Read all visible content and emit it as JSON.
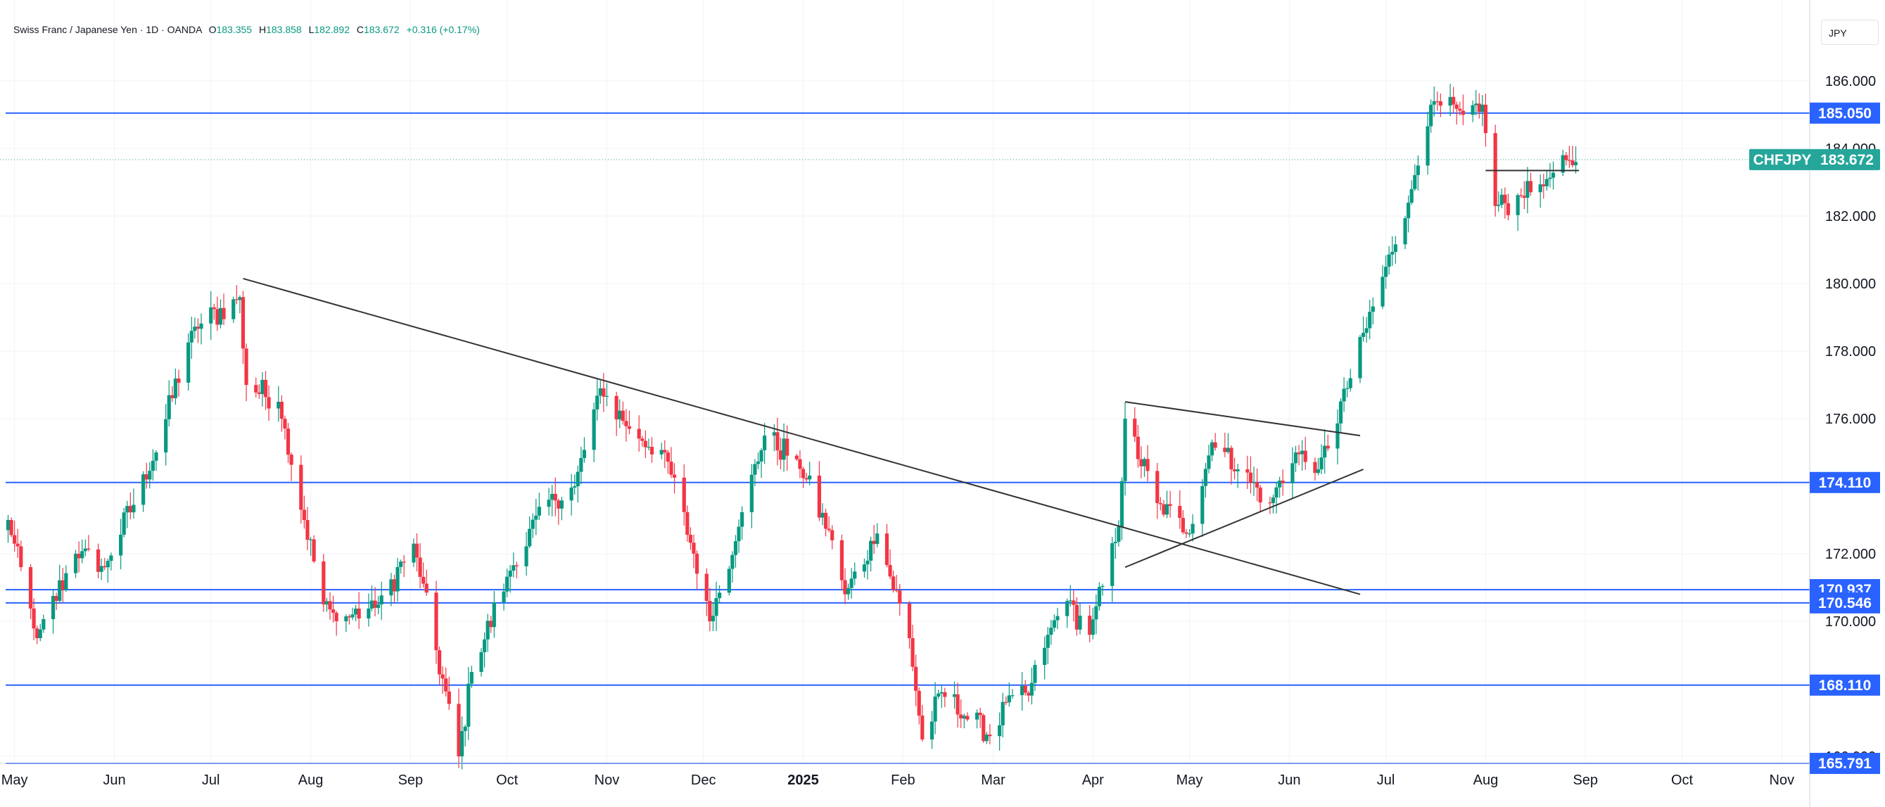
{
  "header": {
    "symbol_title": "Swiss Franc / Japanese Yen · 1D · OANDA",
    "open_label": "O",
    "open_value": "183.355",
    "high_label": "H",
    "high_value": "183.858",
    "low_label": "L",
    "low_value": "182.892",
    "close_label": "C",
    "close_value": "183.672",
    "change": "+0.316 (+0.17%)"
  },
  "currency_button": "JPY",
  "colors": {
    "up": "#089981",
    "down": "#f23645",
    "hline": "#2962ff",
    "trendline": "#333333",
    "price_tag": "#26a69a",
    "grid": "#f0f3fa"
  },
  "chart_data": {
    "type": "candlestick",
    "symbol": "CHFJPY",
    "last_price": "183.672",
    "ylim": [
      164.5,
      188.4
    ],
    "y_ticks": [
      "186.000",
      "184.000",
      "182.000",
      "180.000",
      "178.000",
      "176.000",
      "172.000",
      "170.000",
      "166.000"
    ],
    "x_ticks": [
      {
        "label": "May",
        "date": "2024-05-01"
      },
      {
        "label": "Jun",
        "date": "2024-06-01"
      },
      {
        "label": "Jul",
        "date": "2024-07-01"
      },
      {
        "label": "Aug",
        "date": "2024-08-01"
      },
      {
        "label": "Sep",
        "date": "2024-09-01"
      },
      {
        "label": "Oct",
        "date": "2024-10-01"
      },
      {
        "label": "Nov",
        "date": "2024-11-01"
      },
      {
        "label": "Dec",
        "date": "2024-12-01"
      },
      {
        "label": "2025",
        "date": "2025-01-01"
      },
      {
        "label": "Feb",
        "date": "2025-02-01"
      },
      {
        "label": "Mar",
        "date": "2025-03-01"
      },
      {
        "label": "Apr",
        "date": "2025-04-01"
      },
      {
        "label": "May",
        "date": "2025-05-01"
      },
      {
        "label": "Jun",
        "date": "2025-06-01"
      },
      {
        "label": "Jul",
        "date": "2025-07-01"
      },
      {
        "label": "Aug",
        "date": "2025-08-01"
      },
      {
        "label": "Sep",
        "date": "2025-09-01"
      },
      {
        "label": "Oct",
        "date": "2025-10-01"
      },
      {
        "label": "Nov",
        "date": "2025-11-01"
      }
    ],
    "horizontal_levels": [
      {
        "label": "185.050",
        "price": 185.05
      },
      {
        "label": "174.110",
        "price": 174.11
      },
      {
        "label": "170.937",
        "price": 170.937
      },
      {
        "label": "170.546",
        "price": 170.546
      },
      {
        "label": "168.110",
        "price": 168.11
      },
      {
        "label": "165.791",
        "price": 165.791
      }
    ],
    "trendlines": [
      {
        "name": "descending-resistance",
        "from": {
          "date": "2024-07-11",
          "price": 180.15
        },
        "to": {
          "date": "2025-06-23",
          "price": 170.8
        }
      },
      {
        "name": "wedge-upper",
        "from": {
          "date": "2025-04-11",
          "price": 176.5
        },
        "to": {
          "date": "2025-06-23",
          "price": 175.5
        }
      },
      {
        "name": "wedge-lower",
        "from": {
          "date": "2025-04-11",
          "price": 171.6
        },
        "to": {
          "date": "2025-06-24",
          "price": 174.5
        }
      },
      {
        "name": "aug-range-line",
        "from": {
          "date": "2025-08-01",
          "price": 183.35
        },
        "to": {
          "date": "2025-08-30",
          "price": 183.35
        }
      }
    ],
    "anchors": [
      {
        "date": "2024-04-29",
        "price": 173.0
      },
      {
        "date": "2024-05-08",
        "price": 169.5
      },
      {
        "date": "2024-05-20",
        "price": 172.0
      },
      {
        "date": "2024-05-29",
        "price": 171.6
      },
      {
        "date": "2024-06-14",
        "price": 175.0
      },
      {
        "date": "2024-06-25",
        "price": 178.6
      },
      {
        "date": "2024-07-10",
        "price": 179.6
      },
      {
        "date": "2024-07-12",
        "price": 177.0
      },
      {
        "date": "2024-07-22",
        "price": 176.5
      },
      {
        "date": "2024-08-05",
        "price": 170.5
      },
      {
        "date": "2024-08-09",
        "price": 170.0
      },
      {
        "date": "2024-08-22",
        "price": 170.5
      },
      {
        "date": "2024-09-02",
        "price": 172.3
      },
      {
        "date": "2024-09-16",
        "price": 166.0
      },
      {
        "date": "2024-09-20",
        "price": 168.5
      },
      {
        "date": "2024-10-02",
        "price": 171.5
      },
      {
        "date": "2024-10-14",
        "price": 173.6
      },
      {
        "date": "2024-10-22",
        "price": 174.0
      },
      {
        "date": "2024-10-30",
        "price": 176.9
      },
      {
        "date": "2024-11-08",
        "price": 175.7
      },
      {
        "date": "2024-11-19",
        "price": 175.0
      },
      {
        "date": "2024-11-28",
        "price": 172.0
      },
      {
        "date": "2024-12-03",
        "price": 170.0
      },
      {
        "date": "2024-12-12",
        "price": 172.8
      },
      {
        "date": "2024-12-20",
        "price": 175.5
      },
      {
        "date": "2024-12-30",
        "price": 174.8
      },
      {
        "date": "2025-01-10",
        "price": 172.4
      },
      {
        "date": "2025-01-14",
        "price": 170.8
      },
      {
        "date": "2025-01-24",
        "price": 172.6
      },
      {
        "date": "2025-02-03",
        "price": 169.5
      },
      {
        "date": "2025-02-07",
        "price": 166.5
      },
      {
        "date": "2025-02-13",
        "price": 167.9
      },
      {
        "date": "2025-02-20",
        "price": 167.2
      },
      {
        "date": "2025-02-28",
        "price": 166.6
      },
      {
        "date": "2025-03-05",
        "price": 167.6
      },
      {
        "date": "2025-03-12",
        "price": 167.8
      },
      {
        "date": "2025-03-18",
        "price": 169.6
      },
      {
        "date": "2025-03-24",
        "price": 170.6
      },
      {
        "date": "2025-03-31",
        "price": 169.6
      },
      {
        "date": "2025-04-09",
        "price": 172.8
      },
      {
        "date": "2025-04-11",
        "price": 176.0
      },
      {
        "date": "2025-04-21",
        "price": 173.5
      },
      {
        "date": "2025-05-01",
        "price": 172.6
      },
      {
        "date": "2025-05-08",
        "price": 175.3
      },
      {
        "date": "2025-05-16",
        "price": 174.5
      },
      {
        "date": "2025-05-26",
        "price": 173.5
      },
      {
        "date": "2025-06-03",
        "price": 175.0
      },
      {
        "date": "2025-06-10",
        "price": 174.5
      },
      {
        "date": "2025-06-20",
        "price": 177.2
      },
      {
        "date": "2025-07-01",
        "price": 180.5
      },
      {
        "date": "2025-07-09",
        "price": 182.8
      },
      {
        "date": "2025-07-15",
        "price": 185.3
      },
      {
        "date": "2025-07-25",
        "price": 185.0
      },
      {
        "date": "2025-07-31",
        "price": 185.3
      },
      {
        "date": "2025-08-04",
        "price": 182.3
      },
      {
        "date": "2025-08-12",
        "price": 182.6
      },
      {
        "date": "2025-08-20",
        "price": 183.1
      },
      {
        "date": "2025-08-29",
        "price": 183.6
      }
    ]
  }
}
